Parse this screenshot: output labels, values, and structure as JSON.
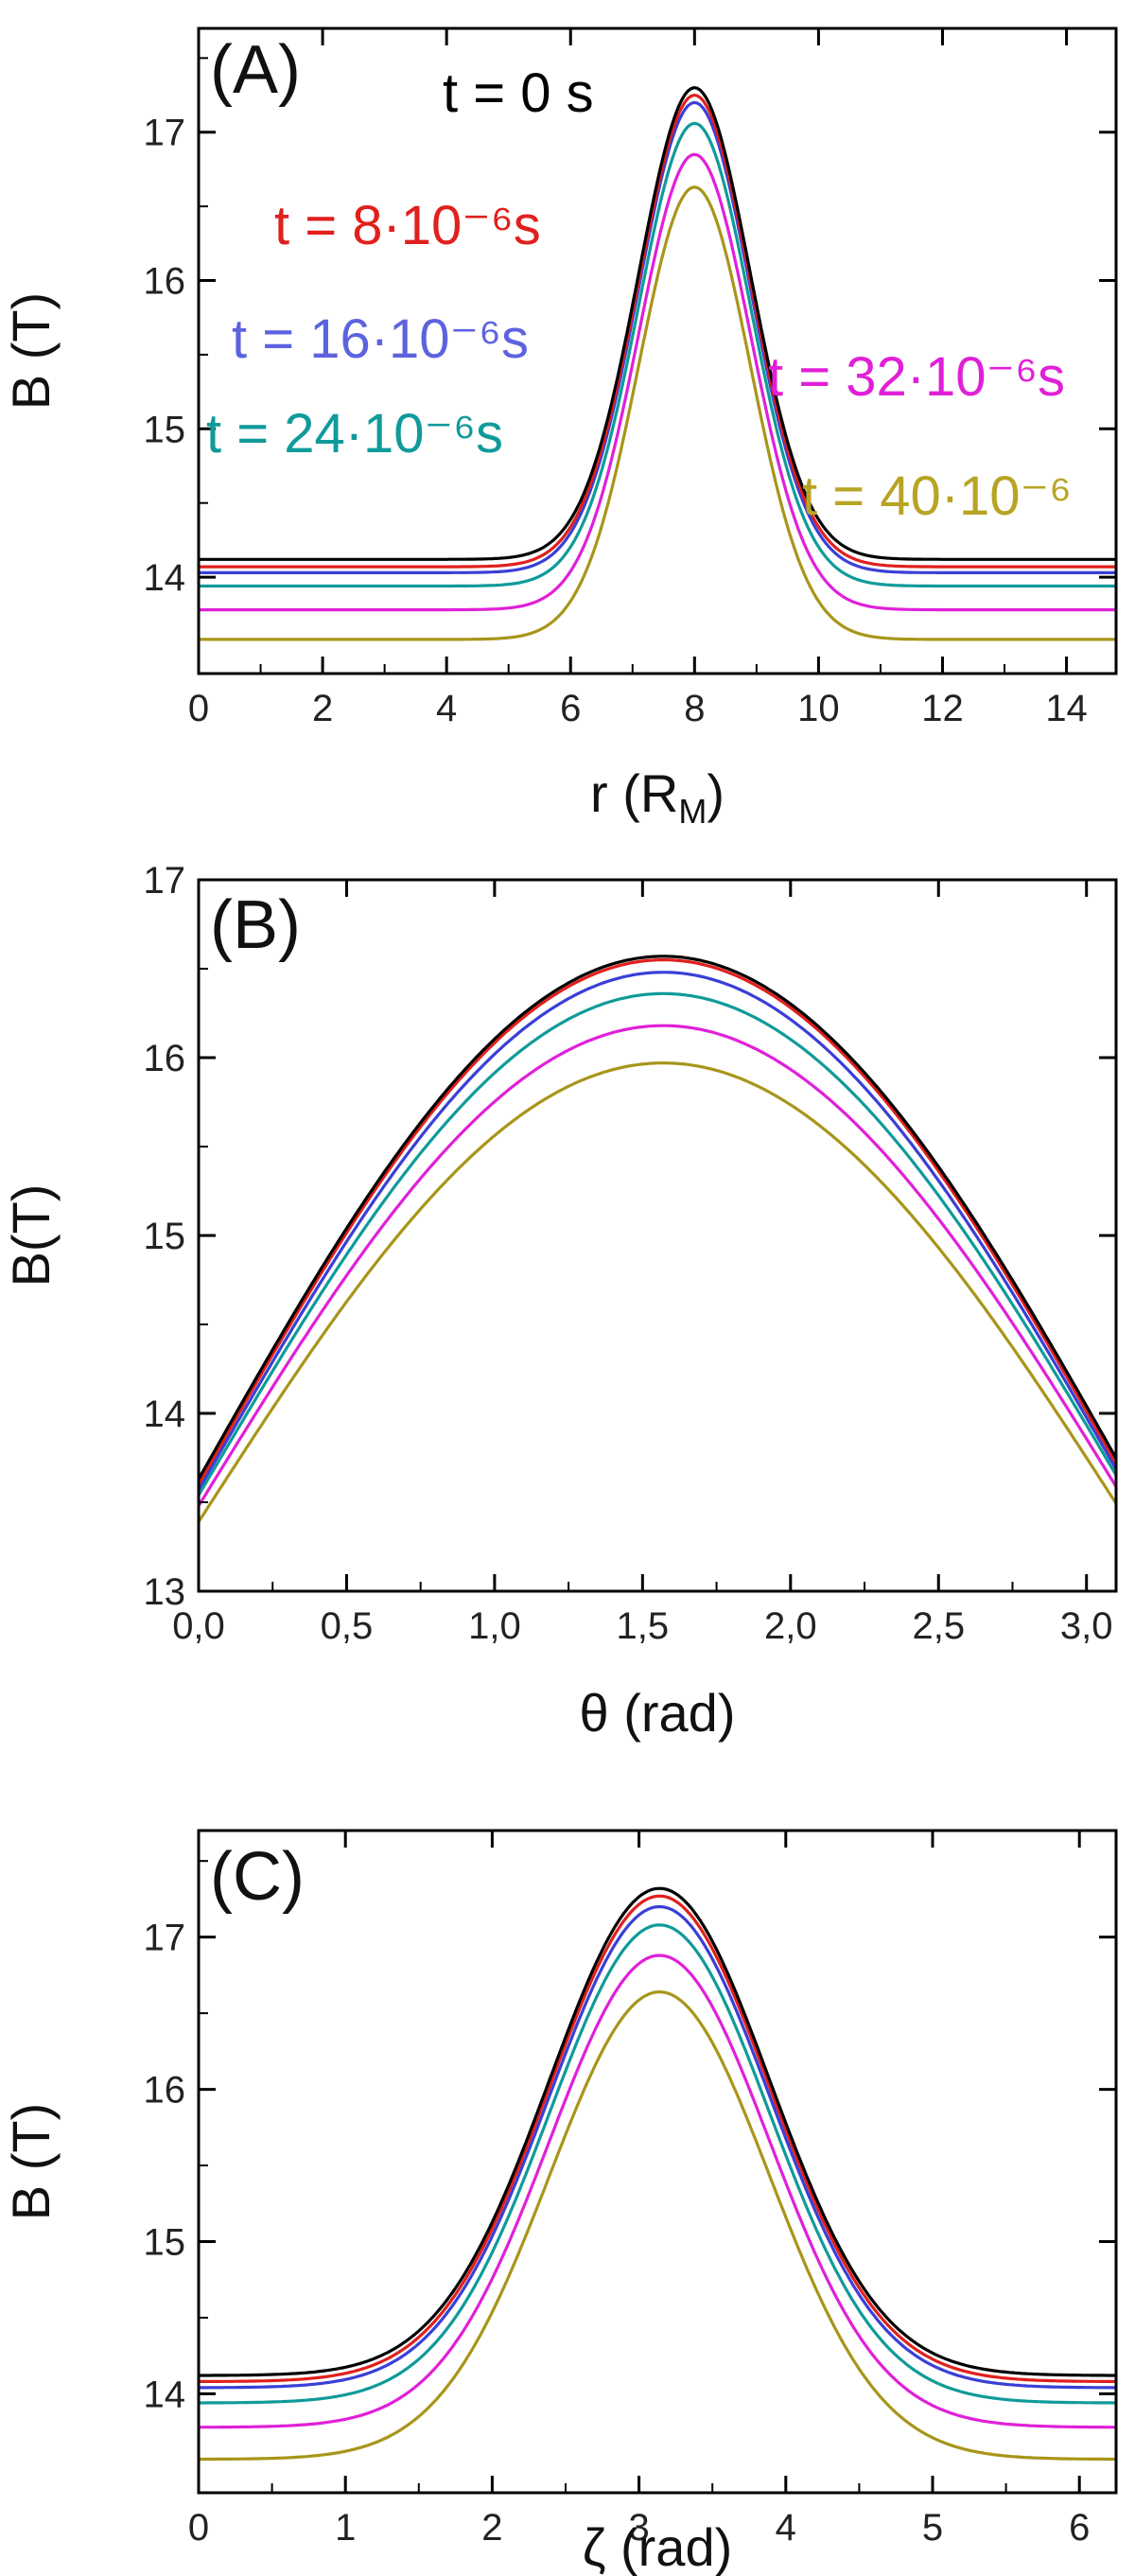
{
  "series_styles": [
    {
      "key": "t0",
      "color": "#000000"
    },
    {
      "key": "t8",
      "color": "#e0201d"
    },
    {
      "key": "t16",
      "color": "#3a3fd6"
    },
    {
      "key": "t24",
      "color": "#109a9a"
    },
    {
      "key": "t32",
      "color": "#e020d8"
    },
    {
      "key": "t40",
      "color": "#a8951a"
    }
  ],
  "legend": [
    {
      "text": "t = 0 s",
      "color": "#000000"
    },
    {
      "text": "t = 8·10⁻⁶s",
      "color": "#e0201d"
    },
    {
      "text": "t = 16·10⁻⁶s",
      "color": "#5d63de"
    },
    {
      "text": "t = 24·10⁻⁶s",
      "color": "#109a9a"
    },
    {
      "text": "t = 32·10⁻⁶s",
      "color": "#e020d8"
    },
    {
      "text": "t = 40·10⁻⁶",
      "color": "#b8a424"
    }
  ],
  "chart_data": [
    {
      "type": "line",
      "panel_label": "(A)",
      "xlabel": "r (R",
      "xlabel_sub": "M",
      "xlabel_tail": ")",
      "ylabel": "B (T)",
      "xlim": [
        0,
        14.8
      ],
      "ylim": [
        13.35,
        17.7
      ],
      "xticks": [
        0,
        2,
        4,
        6,
        8,
        10,
        12,
        14
      ],
      "xtick_labels": [
        "0",
        "2",
        "4",
        "6",
        "8",
        "10",
        "12",
        "14"
      ],
      "yticks": [
        14,
        15,
        16,
        17
      ],
      "ytick_labels": [
        "14",
        "15",
        "16",
        "17"
      ],
      "profile": {
        "kind": "gaussian",
        "center": 8.0,
        "width": 0.9
      },
      "series": [
        {
          "baseline": 14.12,
          "peak": 17.3
        },
        {
          "baseline": 14.07,
          "peak": 17.25
        },
        {
          "baseline": 14.03,
          "peak": 17.2
        },
        {
          "baseline": 13.94,
          "peak": 17.06
        },
        {
          "baseline": 13.78,
          "peak": 16.85
        },
        {
          "baseline": 13.58,
          "peak": 16.63
        }
      ]
    },
    {
      "type": "line",
      "panel_label": "(B)",
      "xlabel": "θ (rad)",
      "ylabel": "B(T)",
      "xlim": [
        0,
        3.1
      ],
      "ylim": [
        13,
        17
      ],
      "xticks": [
        0,
        0.5,
        1.0,
        1.5,
        2.0,
        2.5,
        3.0
      ],
      "xtick_labels": [
        "0,0",
        "0,5",
        "1,0",
        "1,5",
        "2,0",
        "2,5",
        "3,0"
      ],
      "yticks": [
        13,
        14,
        15,
        16,
        17
      ],
      "ytick_labels": [
        "13",
        "14",
        "15",
        "16",
        "17"
      ],
      "profile": {
        "kind": "sine",
        "center": 1.57
      },
      "series": [
        {
          "baseline": 13.63,
          "peak": 16.57
        },
        {
          "baseline": 13.6,
          "peak": 16.55
        },
        {
          "baseline": 13.57,
          "peak": 16.48
        },
        {
          "baseline": 13.54,
          "peak": 16.36
        },
        {
          "baseline": 13.48,
          "peak": 16.18
        },
        {
          "baseline": 13.39,
          "peak": 15.97
        }
      ]
    },
    {
      "type": "line",
      "panel_label": "(C)",
      "xlabel": "ζ (rad)",
      "ylabel": "B (T)",
      "xlim": [
        0,
        6.25
      ],
      "ylim": [
        13.35,
        17.7
      ],
      "xticks": [
        0,
        1,
        2,
        3,
        4,
        5,
        6
      ],
      "xtick_labels": [
        "0",
        "1",
        "2",
        "3",
        "4",
        "5",
        "6"
      ],
      "yticks": [
        14,
        15,
        16,
        17
      ],
      "ytick_labels": [
        "14",
        "15",
        "16",
        "17"
      ],
      "profile": {
        "kind": "gaussian",
        "center": 3.14,
        "width": 0.75
      },
      "series": [
        {
          "baseline": 14.12,
          "peak": 17.32
        },
        {
          "baseline": 14.08,
          "peak": 17.27
        },
        {
          "baseline": 14.04,
          "peak": 17.2
        },
        {
          "baseline": 13.94,
          "peak": 17.08
        },
        {
          "baseline": 13.78,
          "peak": 16.88
        },
        {
          "baseline": 13.57,
          "peak": 16.64
        }
      ]
    }
  ]
}
